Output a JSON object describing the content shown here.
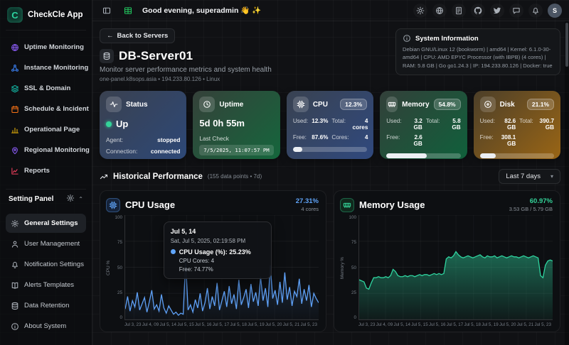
{
  "app": {
    "name": "CheckCle App",
    "logo_letter": "C"
  },
  "header": {
    "greeting": "Good evening, superadmin 👋 ✨",
    "avatar_letter": "S",
    "right_icons": [
      "theme-sun-icon",
      "language-globe-icon",
      "docs-icon",
      "github-icon",
      "twitter-icon",
      "chat-icon",
      "bell-icon"
    ]
  },
  "sidebar": {
    "items": [
      {
        "label": "Uptime Monitoring",
        "icon": "globe-icon",
        "color": "#8b5cf6"
      },
      {
        "label": "Instance Monitoring",
        "icon": "nodes-icon",
        "color": "#3b82f6"
      },
      {
        "label": "SSL & Domain",
        "icon": "layers-icon",
        "color": "#14b8a6"
      },
      {
        "label": "Schedule & Incident",
        "icon": "calendar-icon",
        "color": "#f97316"
      },
      {
        "label": "Operational Page",
        "icon": "bar-chart-icon",
        "color": "#eab308"
      },
      {
        "label": "Regional Monitoring",
        "icon": "map-pin-icon",
        "color": "#8b5cf6"
      },
      {
        "label": "Reports",
        "icon": "report-chart-icon",
        "color": "#f43f5e"
      }
    ],
    "settings_section": {
      "title": "Setting Panel",
      "items": [
        {
          "label": "General Settings",
          "icon": "gear-icon",
          "active": true
        },
        {
          "label": "User Management",
          "icon": "user-icon",
          "active": false
        },
        {
          "label": "Notification Settings",
          "icon": "bell-icon",
          "active": false
        },
        {
          "label": "Alerts Templates",
          "icon": "book-icon",
          "active": false
        },
        {
          "label": "Data Retention",
          "icon": "database-icon",
          "active": false
        },
        {
          "label": "About System",
          "icon": "info-icon",
          "active": false
        }
      ]
    }
  },
  "page": {
    "back_button": "Back to Servers",
    "title": "DB-Server01",
    "subtitle": "Monitor server performance metrics and system health",
    "meta": "one-panel.k8sops.asia • 194.233.80.126 • Linux",
    "system_info": {
      "title": "System Information",
      "text": "Debian GNU/Linux 12 (bookworm) | amd64 | Kernel: 6.1.0-30-amd64 | CPU: AMD EPYC Processor (with IBPB) (4 cores) | RAM: 5.8 GB | Go go1.24.3 | IP: 194.233.80.126 | Docker: true"
    }
  },
  "stat_cards": {
    "status": {
      "title": "Status",
      "value": "Up",
      "agent_label": "Agent:",
      "agent": "stopped",
      "connection_label": "Connection:",
      "connection": "connected"
    },
    "uptime": {
      "title": "Uptime",
      "value": "5d 0h 55m",
      "last_check_label": "Last Check",
      "last_check": "7/5/2025, 11:07:57 PM"
    },
    "cpu": {
      "title": "CPU",
      "badge": "12.3%",
      "used_label": "Used:",
      "used": "12.3%",
      "total_label": "Total:",
      "total": "4 cores",
      "free_label": "Free:",
      "free": "87.6%",
      "cores_label": "Cores:",
      "cores": "4",
      "progress_pct": 12.3
    },
    "memory": {
      "title": "Memory",
      "badge": "54.8%",
      "used_label": "Used:",
      "used": "3.2 GB",
      "total_label": "Total:",
      "total": "5.8 GB",
      "free_label": "Free:",
      "free": "2.6 GB",
      "progress_pct": 54.8
    },
    "disk": {
      "title": "Disk",
      "badge": "21.1%",
      "used_label": "Used:",
      "used": "82.6 GB",
      "total_label": "Total:",
      "total": "390.7 GB",
      "free_label": "Free:",
      "free": "308.1 GB",
      "progress_pct": 21.1
    }
  },
  "performance": {
    "title": "Historical Performance",
    "meta": "(155 data points • 7d)",
    "range_selector": "Last 7 days"
  },
  "chart_data": [
    {
      "id": "cpu",
      "type": "line",
      "title": "CPU Usage",
      "current_value": "27.31%",
      "subtitle": "4 cores",
      "ylabel": "CPU %",
      "ylim": [
        0,
        100
      ],
      "yticks": [
        0,
        25,
        50,
        75,
        100
      ],
      "grid": true,
      "legend_position": "none",
      "color": "#5ea0f6",
      "fill_from": "rgba(94,160,246,0.22)",
      "fill_to": "rgba(94,160,246,0.02)",
      "x_labels": [
        "Jul 3, 23",
        "Jul 4, 09",
        "Jul 5, 14",
        "Jul 5, 15",
        "Jul 5, 16",
        "Jul 5, 17",
        "Jul 5, 18",
        "Jul 5, 19",
        "Jul 5, 20",
        "Jul 5, 21",
        "Jul 5, 23"
      ],
      "values": [
        10,
        22,
        8,
        18,
        12,
        26,
        9,
        15,
        21,
        7,
        17,
        28,
        10,
        14,
        8,
        24,
        11,
        6,
        13,
        9,
        5,
        7,
        4,
        6,
        5,
        57,
        9,
        14,
        7,
        19,
        11,
        25,
        8,
        16,
        30,
        10,
        22,
        13,
        35,
        9,
        18,
        27,
        12,
        32,
        15,
        24,
        10,
        38,
        14,
        21,
        29,
        11,
        34,
        17,
        26,
        13,
        41,
        18,
        30,
        12,
        52,
        20,
        28,
        14,
        36,
        16,
        45,
        19,
        31,
        13,
        27,
        22,
        39,
        15,
        29,
        18,
        33,
        12,
        25,
        20,
        16
      ],
      "tooltip": {
        "title": "Jul 5, 14",
        "date": "Sat, Jul 5, 2025, 02:19:58 PM",
        "primary": "CPU Usage (%): 25.23%",
        "lines": [
          "CPU Cores: 4",
          "Free: 74.77%"
        ]
      }
    },
    {
      "id": "memory",
      "type": "area",
      "title": "Memory Usage",
      "current_value": "60.97%",
      "subtitle": "3.53 GB / 5.79 GB",
      "ylabel": "Memory %",
      "ylim": [
        0,
        100
      ],
      "yticks": [
        0,
        25,
        50,
        75,
        100
      ],
      "grid": true,
      "legend_position": "none",
      "color": "#2fd49f",
      "fill_from": "rgba(47,212,159,0.45)",
      "fill_to": "rgba(47,212,159,0.06)",
      "x_labels": [
        "Jul 3, 23",
        "Jul 4, 09",
        "Jul 5, 14",
        "Jul 5, 15",
        "Jul 5, 16",
        "Jul 5, 17",
        "Jul 5, 18",
        "Jul 5, 19",
        "Jul 5, 20",
        "Jul 5, 21",
        "Jul 5, 23"
      ],
      "values": [
        38,
        37,
        36,
        30,
        29,
        35,
        40,
        40,
        41,
        40,
        40,
        41,
        40,
        42,
        48,
        46,
        42,
        41,
        41,
        42,
        41,
        42,
        42,
        41,
        42,
        43,
        42,
        43,
        43,
        42,
        43,
        44,
        43,
        44,
        43,
        44,
        58,
        60,
        59,
        61,
        65,
        62,
        60,
        59,
        60,
        61,
        60,
        59,
        60,
        61,
        62,
        60,
        59,
        61,
        60,
        60,
        61,
        59,
        60,
        61,
        60,
        59,
        60,
        61,
        60,
        60,
        59,
        60,
        61,
        60,
        59,
        60,
        61,
        60,
        59,
        42,
        40,
        52,
        56,
        57,
        56
      ]
    }
  ]
}
